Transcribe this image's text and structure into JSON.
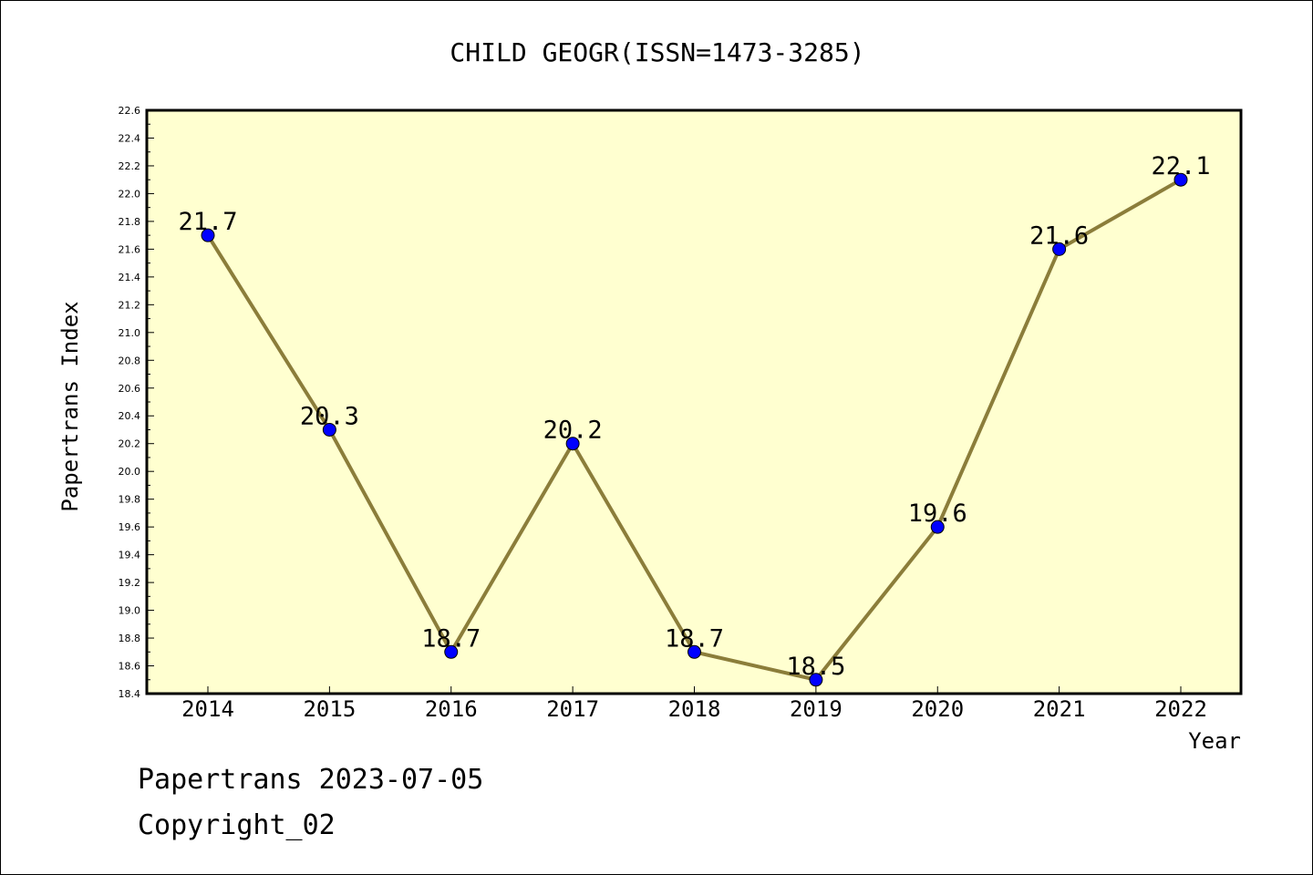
{
  "chart_data": {
    "type": "line",
    "title": "CHILD GEOGR(ISSN=1473-3285)",
    "xlabel": "Year",
    "ylabel": "Papertrans Index",
    "categories": [
      "2014",
      "2015",
      "2016",
      "2017",
      "2018",
      "2019",
      "2020",
      "2021",
      "2022"
    ],
    "series": [
      {
        "values": [
          21.7,
          20.3,
          18.7,
          20.2,
          18.7,
          18.5,
          19.6,
          21.6,
          22.1
        ]
      }
    ],
    "data_labels": [
      "21.7",
      "20.3",
      "18.7",
      "20.2",
      "18.7",
      "18.5",
      "19.6",
      "21.6",
      "22.1"
    ],
    "ylim": [
      18.4,
      22.6
    ],
    "yticks": [
      "18.4",
      "18.6",
      "18.8",
      "19.0",
      "19.2",
      "19.4",
      "19.6",
      "19.8",
      "20.0",
      "20.2",
      "20.4",
      "20.6",
      "20.8",
      "21.0",
      "21.2",
      "21.4",
      "21.6",
      "21.8",
      "22.0",
      "22.2",
      "22.4",
      "22.6"
    ],
    "grid": false,
    "colors": {
      "plot_bg": "#ffffd0",
      "line": "#8b7d3a",
      "marker": "#0000ff"
    }
  },
  "footer": {
    "line1": "Papertrans 2023-07-05",
    "line2": "Copyright_02"
  }
}
